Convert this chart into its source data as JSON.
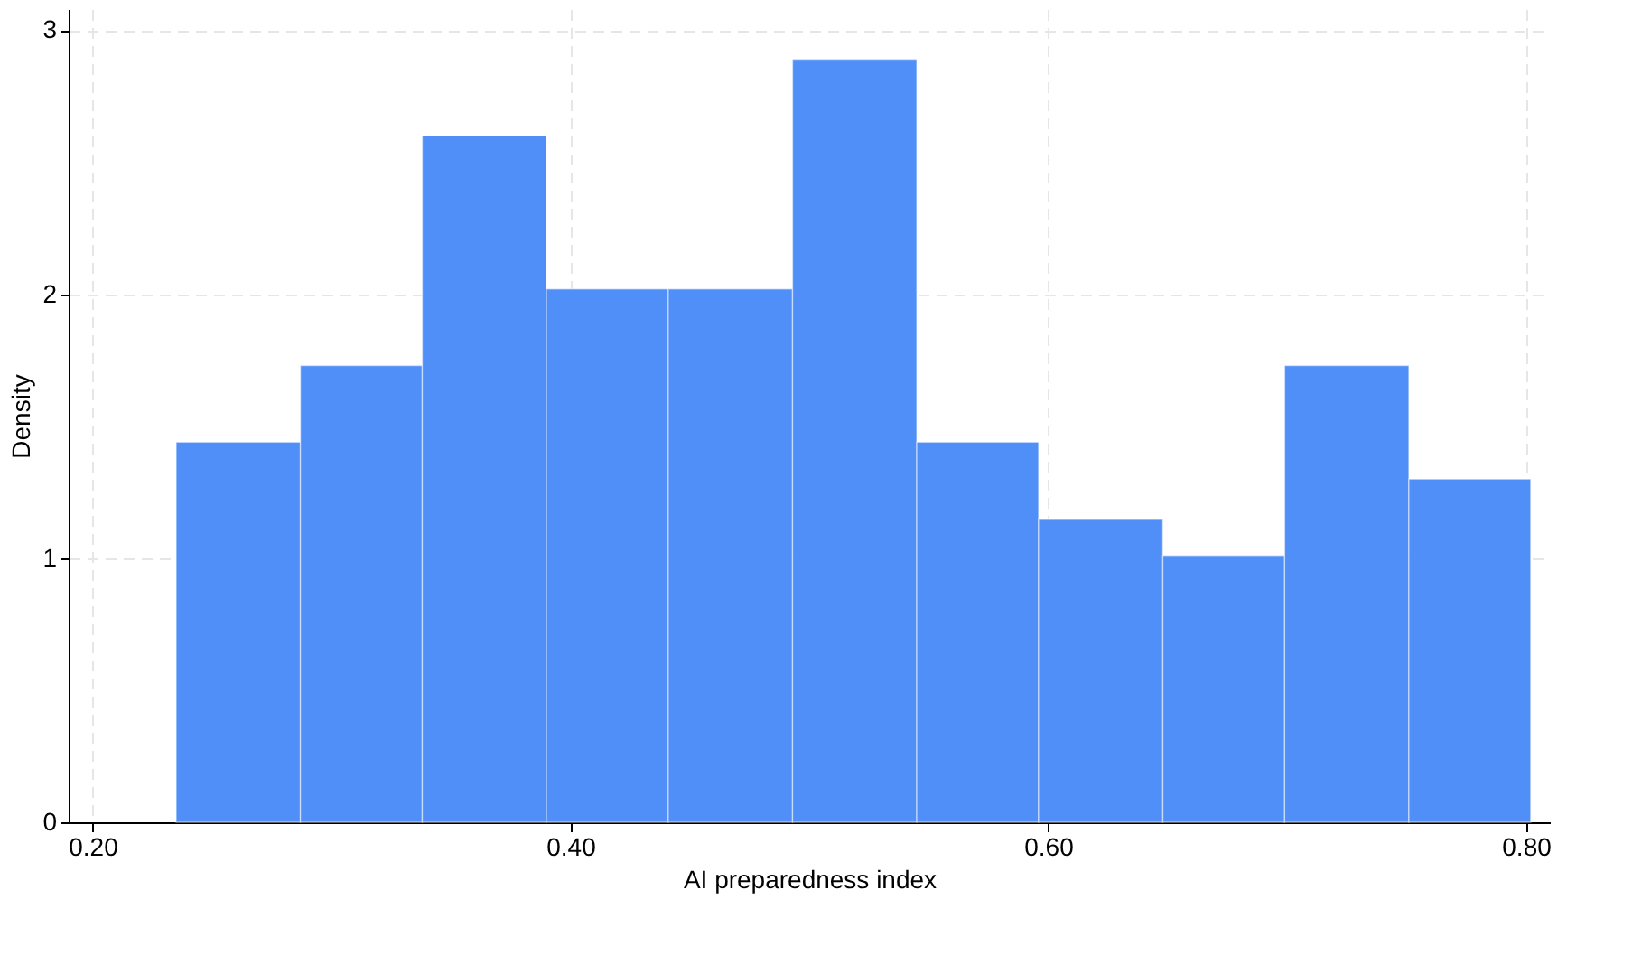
{
  "chart_data": {
    "type": "histogram",
    "xlabel": "AI preparedness index",
    "ylabel": "Density",
    "bins": [
      0.235,
      0.287,
      0.338,
      0.39,
      0.441,
      0.493,
      0.545,
      0.596,
      0.648,
      0.699,
      0.751,
      0.802
    ],
    "values": [
      1.44,
      1.73,
      2.6,
      2.02,
      2.02,
      2.89,
      1.44,
      1.15,
      1.01,
      1.73,
      1.3
    ],
    "color": "#4f8ff7",
    "xlim": [
      0.19,
      0.81
    ],
    "xticks": [
      {
        "value": 0.2,
        "label": "0.20"
      },
      {
        "value": 0.4,
        "label": "0.40"
      },
      {
        "value": 0.6,
        "label": "0.60"
      },
      {
        "value": 0.8,
        "label": "0.80"
      }
    ],
    "ylim": [
      0,
      3.08
    ],
    "yticks": [
      0,
      1,
      2,
      3
    ],
    "grid": true
  }
}
